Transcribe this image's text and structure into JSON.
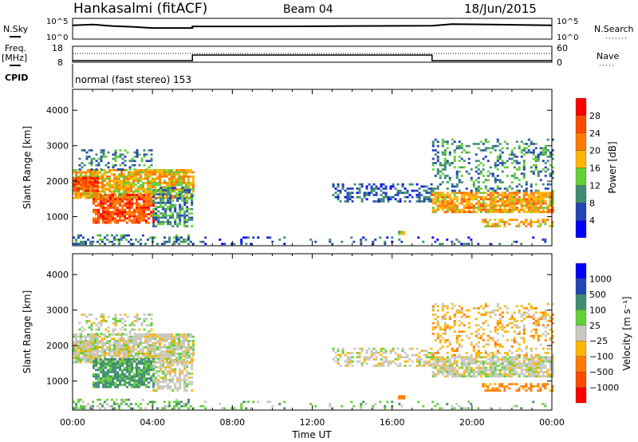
{
  "header": {
    "title": "Hankasalmi (fitACF)",
    "beam": "Beam 04",
    "date": "18/Jun/2015"
  },
  "noise_panel": {
    "left_label": "N.Sky",
    "right_label": "N.Search",
    "left_ticks": [
      "10^5",
      "10^0"
    ],
    "right_ticks": [
      "10^5",
      "10^0"
    ],
    "nsky_log10": [
      [
        0,
        3.6
      ],
      [
        1,
        3.8
      ],
      [
        2,
        3.4
      ],
      [
        3,
        3.2
      ],
      [
        4,
        2.9
      ],
      [
        6,
        2.9
      ],
      [
        6,
        3.3
      ],
      [
        10,
        3.3
      ],
      [
        14,
        3.4
      ],
      [
        18,
        3.5
      ],
      [
        19,
        3.9
      ],
      [
        21,
        3.8
      ],
      [
        24,
        3.6
      ]
    ]
  },
  "freq_panel": {
    "left_label_1": "Freq.",
    "left_label_2": "[MHz]",
    "right_label": "Nave",
    "left_ticks": [
      "18",
      "8"
    ],
    "right_ticks": [
      "60",
      "0"
    ],
    "freq_range": [
      8,
      18
    ],
    "nave_range": [
      0,
      60
    ],
    "freq_segments": [
      [
        0,
        6,
        9
      ],
      [
        6,
        18,
        12.5
      ],
      [
        18,
        24,
        9
      ]
    ],
    "nave_value": 33
  },
  "cpid": {
    "label": "CPID",
    "value": "normal (fast stereo) 153"
  },
  "chart_data": {
    "type": "heatmap",
    "xlabel": "Time UT",
    "ylabel": "Slant Range [km]",
    "xlim": [
      0,
      24
    ],
    "ylim": [
      180,
      4590
    ],
    "x_ticks": [
      "00:00",
      "04:00",
      "08:00",
      "12:00",
      "16:00",
      "20:00",
      "00:00"
    ],
    "y_ticks": [
      "1000",
      "2000",
      "3000",
      "4000"
    ],
    "power_colorbar": {
      "label": "Power [dB]",
      "ticks": [
        "4",
        "8",
        "12",
        "16",
        "20",
        "24",
        "28"
      ],
      "colors": [
        "#0000ff",
        "#2244b4",
        "#3f8c74",
        "#62d036",
        "#ffb400",
        "#ff7a00",
        "#ff4a00",
        "#ff0000"
      ]
    },
    "velocity_colorbar": {
      "label": "Velocity [m s⁻¹]",
      "ticks": [
        "1000",
        "500",
        "100",
        "25",
        "−25",
        "−100",
        "−500",
        "−1000"
      ],
      "colors": [
        "#0000ff",
        "#2244b4",
        "#3f8c74",
        "#62d036",
        "#c8c8c0",
        "#ffb400",
        "#ff7a00",
        "#ff4a00",
        "#ff0000"
      ]
    },
    "echo_regions": [
      {
        "t": [
          0,
          6
        ],
        "r": [
          1500,
          2300
        ],
        "power": 18,
        "velocity": 0,
        "density": 0.8
      },
      {
        "t": [
          0,
          1.2
        ],
        "r": [
          1700,
          2100
        ],
        "power": 26,
        "velocity": 0,
        "density": 0.9
      },
      {
        "t": [
          0.3,
          4
        ],
        "r": [
          2300,
          2900
        ],
        "power": 9,
        "velocity": 0,
        "density": 0.35
      },
      {
        "t": [
          1,
          4
        ],
        "r": [
          800,
          1600
        ],
        "power": 25,
        "velocity": 150,
        "density": 0.85
      },
      {
        "t": [
          4,
          6
        ],
        "r": [
          700,
          1800
        ],
        "power": 10,
        "velocity": 0,
        "density": 0.6
      },
      {
        "t": [
          0,
          6
        ],
        "r": [
          200,
          450
        ],
        "power": 9,
        "velocity": 60,
        "density": 0.35
      },
      {
        "t": [
          13,
          18
        ],
        "r": [
          1400,
          1900
        ],
        "power": 7,
        "velocity": 0,
        "density": 0.45
      },
      {
        "t": [
          18,
          24
        ],
        "r": [
          1100,
          1700
        ],
        "power": 20,
        "velocity": 0,
        "density": 0.85
      },
      {
        "t": [
          18,
          24
        ],
        "r": [
          1700,
          3200
        ],
        "power": 10,
        "velocity": -60,
        "density": 0.3
      },
      {
        "t": [
          20.5,
          24
        ],
        "r": [
          700,
          900
        ],
        "power": 19,
        "velocity": -200,
        "density": 0.5
      },
      {
        "t": [
          6,
          24
        ],
        "r": [
          200,
          400
        ],
        "power": 6,
        "velocity": 60,
        "density": 0.12
      },
      {
        "t": [
          16.3,
          16.6
        ],
        "r": [
          480,
          560
        ],
        "power": 13,
        "velocity": -200,
        "density": 0.9
      }
    ]
  }
}
